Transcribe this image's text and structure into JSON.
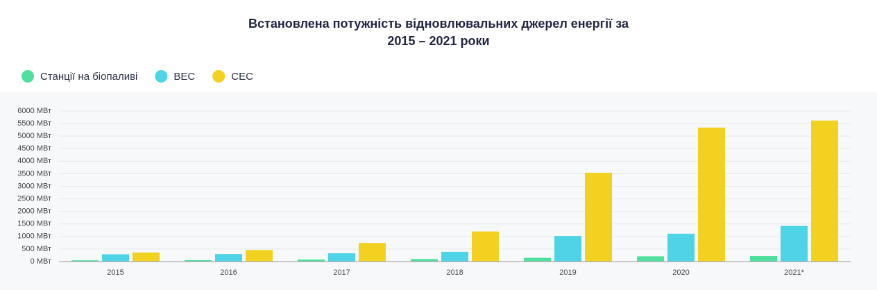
{
  "chart_data": {
    "type": "bar",
    "title": [
      "Встановлена потужність відновлювальних джерел енергії за",
      "2015 – 2021 роки"
    ],
    "categories": [
      "2015",
      "2016",
      "2017",
      "2018",
      "2019",
      "2020",
      "2021*"
    ],
    "series": [
      {
        "name": "Станції на біопаливі",
        "color": "#4fe0a0",
        "values": [
          50,
          55,
          80,
          100,
          150,
          210,
          220
        ]
      },
      {
        "name": "ВЕС",
        "color": "#4fd3e6",
        "values": [
          290,
          300,
          330,
          390,
          1020,
          1110,
          1420
        ]
      },
      {
        "name": "СЕС",
        "color": "#f3d121",
        "values": [
          360,
          460,
          740,
          1200,
          3540,
          5340,
          5620
        ]
      }
    ],
    "ylim": [
      0,
      6000
    ],
    "yticks": [
      {
        "value": 0,
        "label": "0 МВт"
      },
      {
        "value": 500,
        "label": "500 МВт"
      },
      {
        "value": 1000,
        "label": "1000 МВт"
      },
      {
        "value": 1500,
        "label": "1500 МВт"
      },
      {
        "value": 2000,
        "label": "2000 МВт"
      },
      {
        "value": 2500,
        "label": "2500 МВт"
      },
      {
        "value": 3000,
        "label": "3000 МВт"
      },
      {
        "value": 3500,
        "label": "3500 МВт"
      },
      {
        "value": 4000,
        "label": "4000 МВт"
      },
      {
        "value": 4500,
        "label": "4500 МВт"
      },
      {
        "value": 5000,
        "label": "5000 МВт"
      },
      {
        "value": 5500,
        "label": "5500 МВт"
      },
      {
        "value": 6000,
        "label": "6000 МВт"
      }
    ],
    "grid": true
  }
}
